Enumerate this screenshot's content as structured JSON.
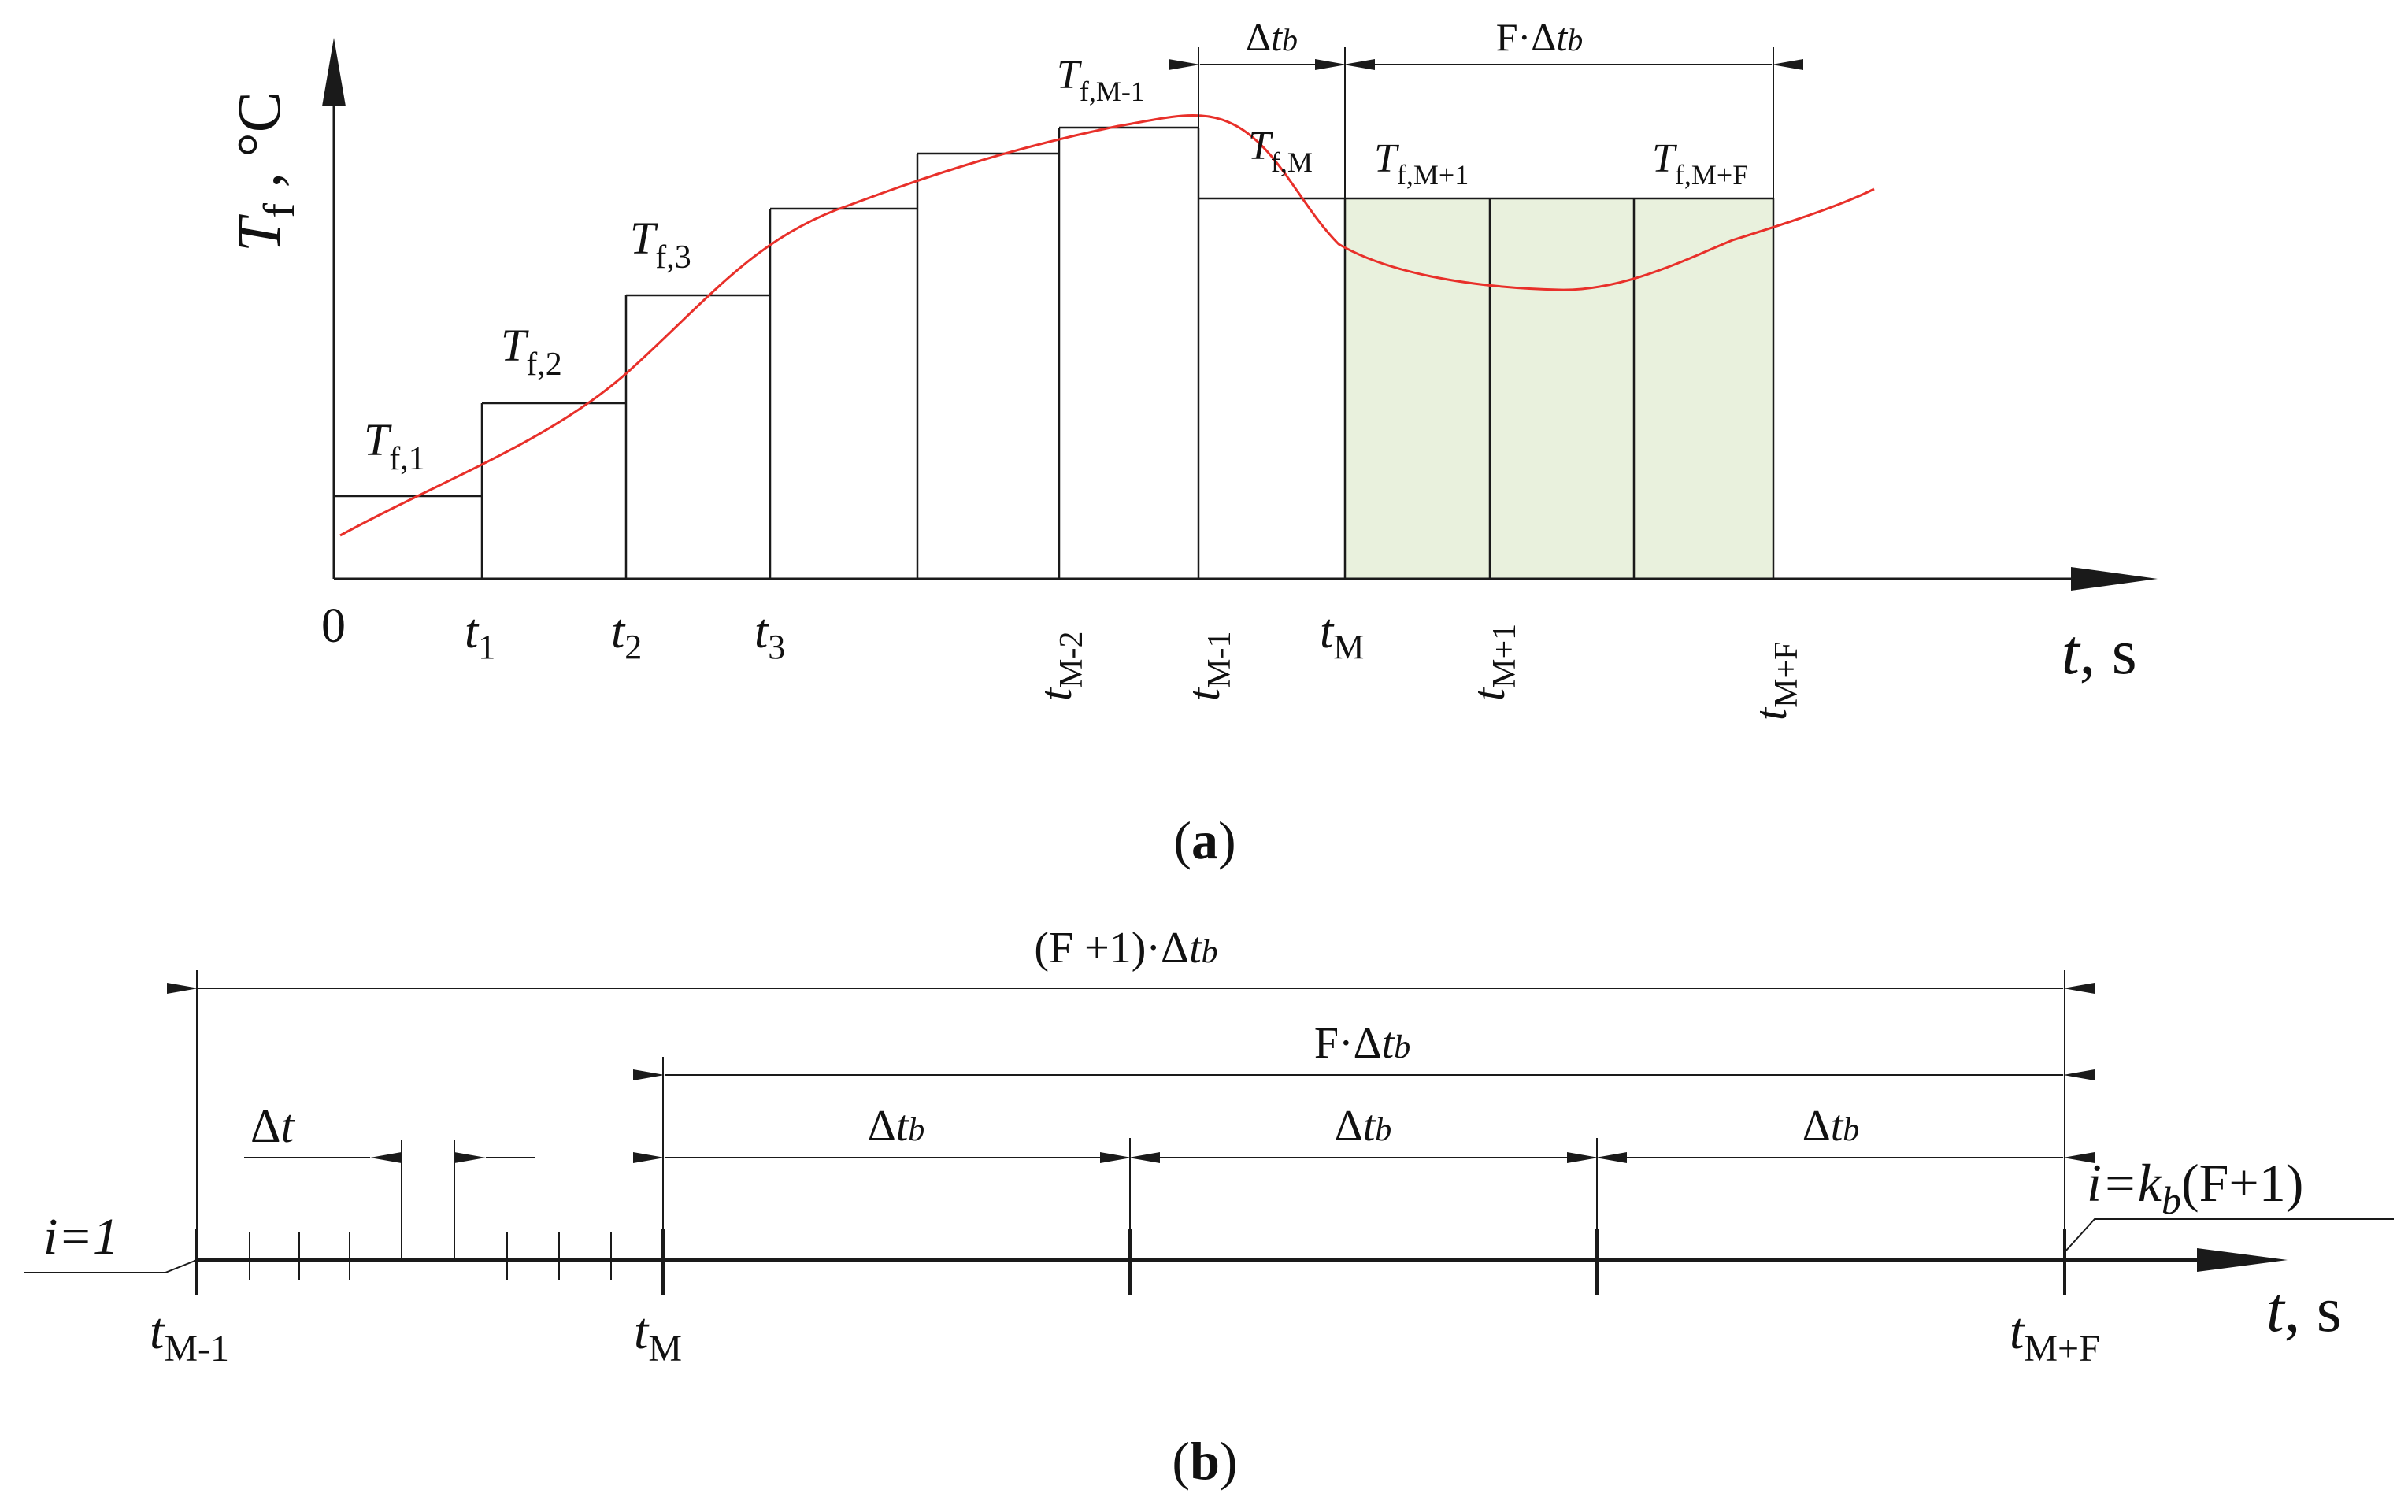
{
  "colors": {
    "line": "#1a1a1a",
    "curve": "#e8302a",
    "shade": "#e9f1dd"
  },
  "panel_a": {
    "caption": {
      "open": "(",
      "letter": "a",
      "close": ")"
    },
    "y_axis": {
      "sym": "T",
      "sub": "f",
      "unit": " , °C"
    },
    "x_axis": {
      "sym": "t",
      "unit": ", s"
    },
    "level_labels": [
      {
        "sym": "T",
        "sub": "f,1"
      },
      {
        "sym": "T",
        "sub": "f,2"
      },
      {
        "sym": "T",
        "sub": "f,3"
      },
      {
        "sym": "T",
        "sub": "f,M-1"
      },
      {
        "sym": "T",
        "sub": "f,M"
      },
      {
        "sym": "T",
        "sub": "f,M+1"
      },
      {
        "sym": "T",
        "sub": "f,M+F"
      }
    ],
    "tick_labels": [
      {
        "sym": "0",
        "sub": ""
      },
      {
        "sym": "t",
        "sub": "1"
      },
      {
        "sym": "t",
        "sub": "2"
      },
      {
        "sym": "t",
        "sub": "3"
      },
      {
        "sym": "t",
        "sub": "M-2"
      },
      {
        "sym": "t",
        "sub": "M-1"
      },
      {
        "sym": "t",
        "sub": "M"
      },
      {
        "sym": "t",
        "sub": "M+1"
      },
      {
        "sym": "t",
        "sub": "M+F"
      }
    ],
    "dims": {
      "dtb": {
        "delta": "Δ",
        "sym": "t",
        "sub": "b"
      },
      "f_dtb": {
        "prefix": "F·",
        "delta": "Δ",
        "sym": "t",
        "sub": "b"
      }
    }
  },
  "panel_b": {
    "caption": {
      "open": "(",
      "letter": "b",
      "close": ")"
    },
    "x_axis": {
      "sym": "t",
      "unit": ", s"
    },
    "dims": {
      "f1_dtb": {
        "prefix": "(F +1)·",
        "delta": "Δ",
        "sym": "t",
        "sub": "b"
      },
      "f_dtb": {
        "prefix": "F·",
        "delta": "Δ",
        "sym": "t",
        "sub": "b"
      },
      "dt": {
        "delta": "Δ",
        "sym": "t"
      },
      "dtb": {
        "delta": "Δ",
        "sym": "t",
        "sub": "b"
      }
    },
    "tick_labels": [
      {
        "sym": "t",
        "sub": "M-1"
      },
      {
        "sym": "t",
        "sub": "M"
      },
      {
        "sym": "t",
        "sub": "M+F"
      }
    ],
    "i_start": {
      "text": "i=1"
    },
    "i_end": {
      "pre": "i=",
      "k": "k",
      "kb": "b",
      "post": "(F+1)"
    }
  }
}
